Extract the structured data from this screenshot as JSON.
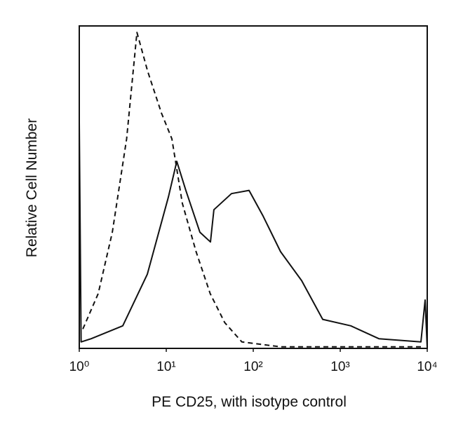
{
  "chart_data": {
    "type": "line",
    "x_label": "PE CD25, with isotype control",
    "y_label": "Relative Cell Number",
    "x_log": true,
    "xlim": [
      1,
      10000
    ],
    "ylim": [
      0,
      100
    ],
    "xticks": [
      {
        "value": 1,
        "label": "10⁰"
      },
      {
        "value": 10,
        "label": "10¹"
      },
      {
        "value": 100,
        "label": "10²"
      },
      {
        "value": 1000,
        "label": "10³"
      },
      {
        "value": 10000,
        "label": "10⁴"
      }
    ],
    "series": [
      {
        "color": "#111111",
        "dashed": false,
        "x": [
          1,
          1.05,
          1.37,
          3.16,
          6.06,
          10.6,
          13.2,
          16.8,
          24.4,
          32.2,
          35.3,
          56.2,
          89.5,
          130,
          206,
          360,
          629,
          1321,
          2780,
          8457,
          9460,
          10000
        ],
        "values": [
          70,
          2,
          3,
          7,
          23,
          47,
          58,
          49,
          36,
          33,
          43,
          48,
          49,
          41,
          30,
          21,
          9,
          7,
          3,
          2,
          15,
          0
        ]
      },
      {
        "color": "#111111",
        "dashed": true,
        "x": [
          1.1,
          1.65,
          2.4,
          3.5,
          4.6,
          6.1,
          8.8,
          11.6,
          15.3,
          22,
          32,
          47,
          74,
          206,
          8500
        ],
        "values": [
          6,
          17,
          36,
          65,
          98,
          86,
          73,
          65,
          45,
          30,
          17,
          8,
          2,
          0.5,
          0.5
        ]
      }
    ]
  }
}
